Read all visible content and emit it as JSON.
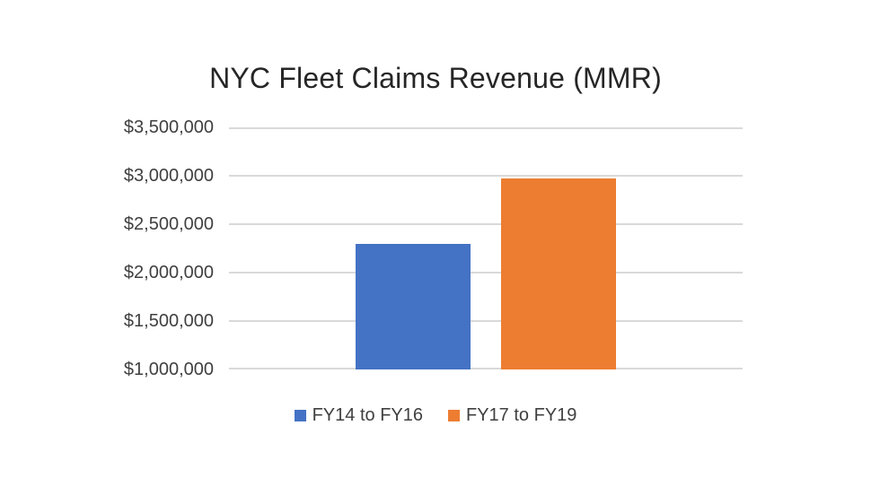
{
  "page": {
    "background_color": "#ffffff"
  },
  "chart_data": {
    "type": "bar",
    "title": "NYC Fleet Claims Revenue (MMR)",
    "categories": [
      ""
    ],
    "series": [
      {
        "name": "FY14 to FY16",
        "values": [
          2300000
        ],
        "color": "#4472C4"
      },
      {
        "name": "FY17 to FY19",
        "values": [
          2970000
        ],
        "color": "#ED7D31"
      }
    ],
    "xlabel": "",
    "ylabel": "",
    "ylim": [
      1000000,
      3500000
    ],
    "y_ticks": [
      {
        "label": "$1,000,000",
        "value": 1000000
      },
      {
        "label": "$1,500,000",
        "value": 1500000
      },
      {
        "label": "$2,000,000",
        "value": 2000000
      },
      {
        "label": "$2,500,000",
        "value": 2500000
      },
      {
        "label": "$3,000,000",
        "value": 3000000
      },
      {
        "label": "$3,500,000",
        "value": 3500000
      }
    ],
    "grid": true,
    "legend_position": "bottom",
    "colors": {
      "gridline": "#d9d9d9",
      "title_text": "#262626",
      "axis_text": "#404040"
    }
  }
}
